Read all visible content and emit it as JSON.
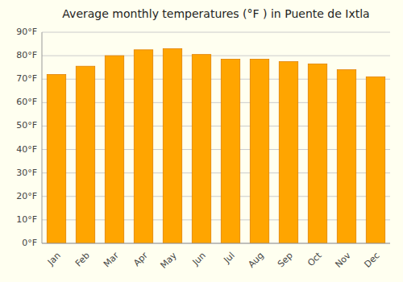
{
  "chart_data": {
    "type": "bar",
    "title": "Average monthly temperatures (°F ) in Puente de Ixtla",
    "categories": [
      "Jan",
      "Feb",
      "Mar",
      "Apr",
      "May",
      "Jun",
      "Jul",
      "Aug",
      "Sep",
      "Oct",
      "Nov",
      "Dec"
    ],
    "values": [
      72,
      75.5,
      80,
      82.5,
      83,
      80.5,
      78.5,
      78.5,
      77.5,
      76.5,
      74,
      71
    ],
    "color": "#FFA500",
    "ylim": [
      0,
      90
    ],
    "yticks": [
      {
        "value": 0,
        "label": "0°F"
      },
      {
        "value": 10,
        "label": "10°F"
      },
      {
        "value": 20,
        "label": "20°F"
      },
      {
        "value": 30,
        "label": "30°F"
      },
      {
        "value": 40,
        "label": "40°F"
      },
      {
        "value": 50,
        "label": "50°F"
      },
      {
        "value": 60,
        "label": "60°F"
      },
      {
        "value": 70,
        "label": "70°F"
      },
      {
        "value": 80,
        "label": "80°F"
      },
      {
        "value": 90,
        "label": "90°F"
      }
    ],
    "grid": true
  }
}
